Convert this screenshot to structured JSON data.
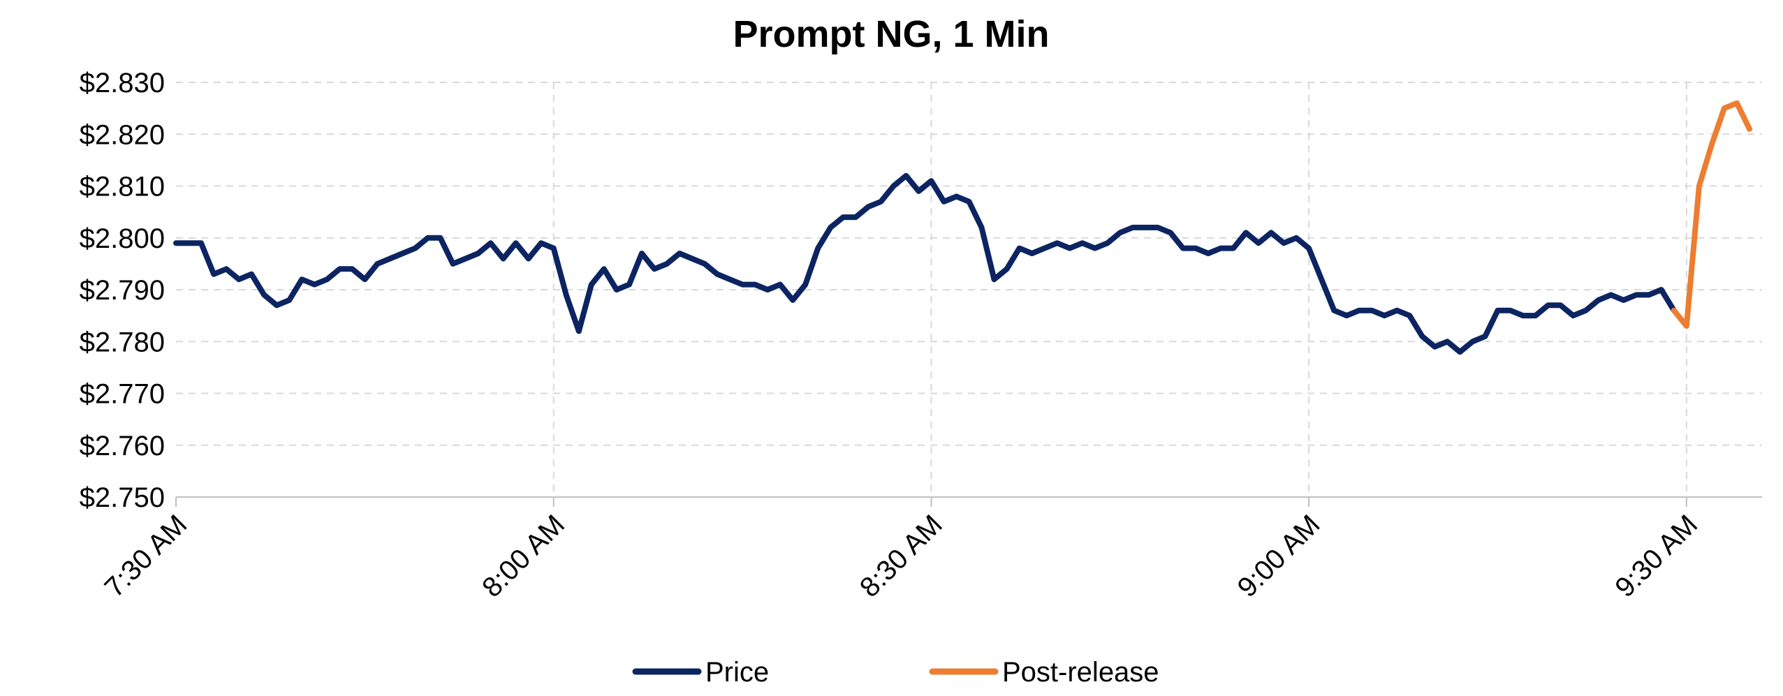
{
  "chart_data": {
    "type": "line",
    "title": "Prompt NG, 1 Min",
    "xlabel": "",
    "ylabel": "",
    "ylim": [
      2.75,
      2.83
    ],
    "y_ticks": [
      "$2.750",
      "$2.760",
      "$2.770",
      "$2.780",
      "$2.790",
      "$2.800",
      "$2.810",
      "$2.820",
      "$2.830"
    ],
    "x_ticks": [
      "7:30 AM",
      "8:00 AM",
      "8:30 AM",
      "9:00 AM",
      "9:30 AM"
    ],
    "x_range_minutes": [
      0,
      126
    ],
    "x_tick_minutes": [
      0,
      30,
      60,
      90,
      120
    ],
    "grid": true,
    "legend_position": "bottom",
    "series": [
      {
        "name": "Price",
        "color": "#0c2461",
        "start_minute": 0,
        "values": [
          2.799,
          2.799,
          2.799,
          2.793,
          2.794,
          2.792,
          2.793,
          2.789,
          2.787,
          2.788,
          2.792,
          2.791,
          2.792,
          2.794,
          2.794,
          2.792,
          2.795,
          2.796,
          2.797,
          2.798,
          2.8,
          2.8,
          2.795,
          2.796,
          2.797,
          2.799,
          2.796,
          2.799,
          2.796,
          2.799,
          2.798,
          2.789,
          2.782,
          2.791,
          2.794,
          2.79,
          2.791,
          2.797,
          2.794,
          2.795,
          2.797,
          2.796,
          2.795,
          2.793,
          2.792,
          2.791,
          2.791,
          2.79,
          2.791,
          2.788,
          2.791,
          2.798,
          2.802,
          2.804,
          2.804,
          2.806,
          2.807,
          2.81,
          2.812,
          2.809,
          2.811,
          2.807,
          2.808,
          2.807,
          2.802,
          2.792,
          2.794,
          2.798,
          2.797,
          2.798,
          2.799,
          2.798,
          2.799,
          2.798,
          2.799,
          2.801,
          2.802,
          2.802,
          2.802,
          2.801,
          2.798,
          2.798,
          2.797,
          2.798,
          2.798,
          2.801,
          2.799,
          2.801,
          2.799,
          2.8,
          2.798,
          2.792,
          2.786,
          2.785,
          2.786,
          2.786,
          2.785,
          2.786,
          2.785,
          2.781,
          2.779,
          2.78,
          2.778,
          2.78,
          2.781,
          2.786,
          2.786,
          2.785,
          2.785,
          2.787,
          2.787,
          2.785,
          2.786,
          2.788,
          2.789,
          2.788,
          2.789,
          2.789,
          2.79,
          2.786
        ]
      },
      {
        "name": "Post-release",
        "color": "#ed7d31",
        "start_minute": 119,
        "values": [
          2.786,
          2.783,
          2.81,
          2.818,
          2.825,
          2.826,
          2.821
        ]
      }
    ]
  }
}
